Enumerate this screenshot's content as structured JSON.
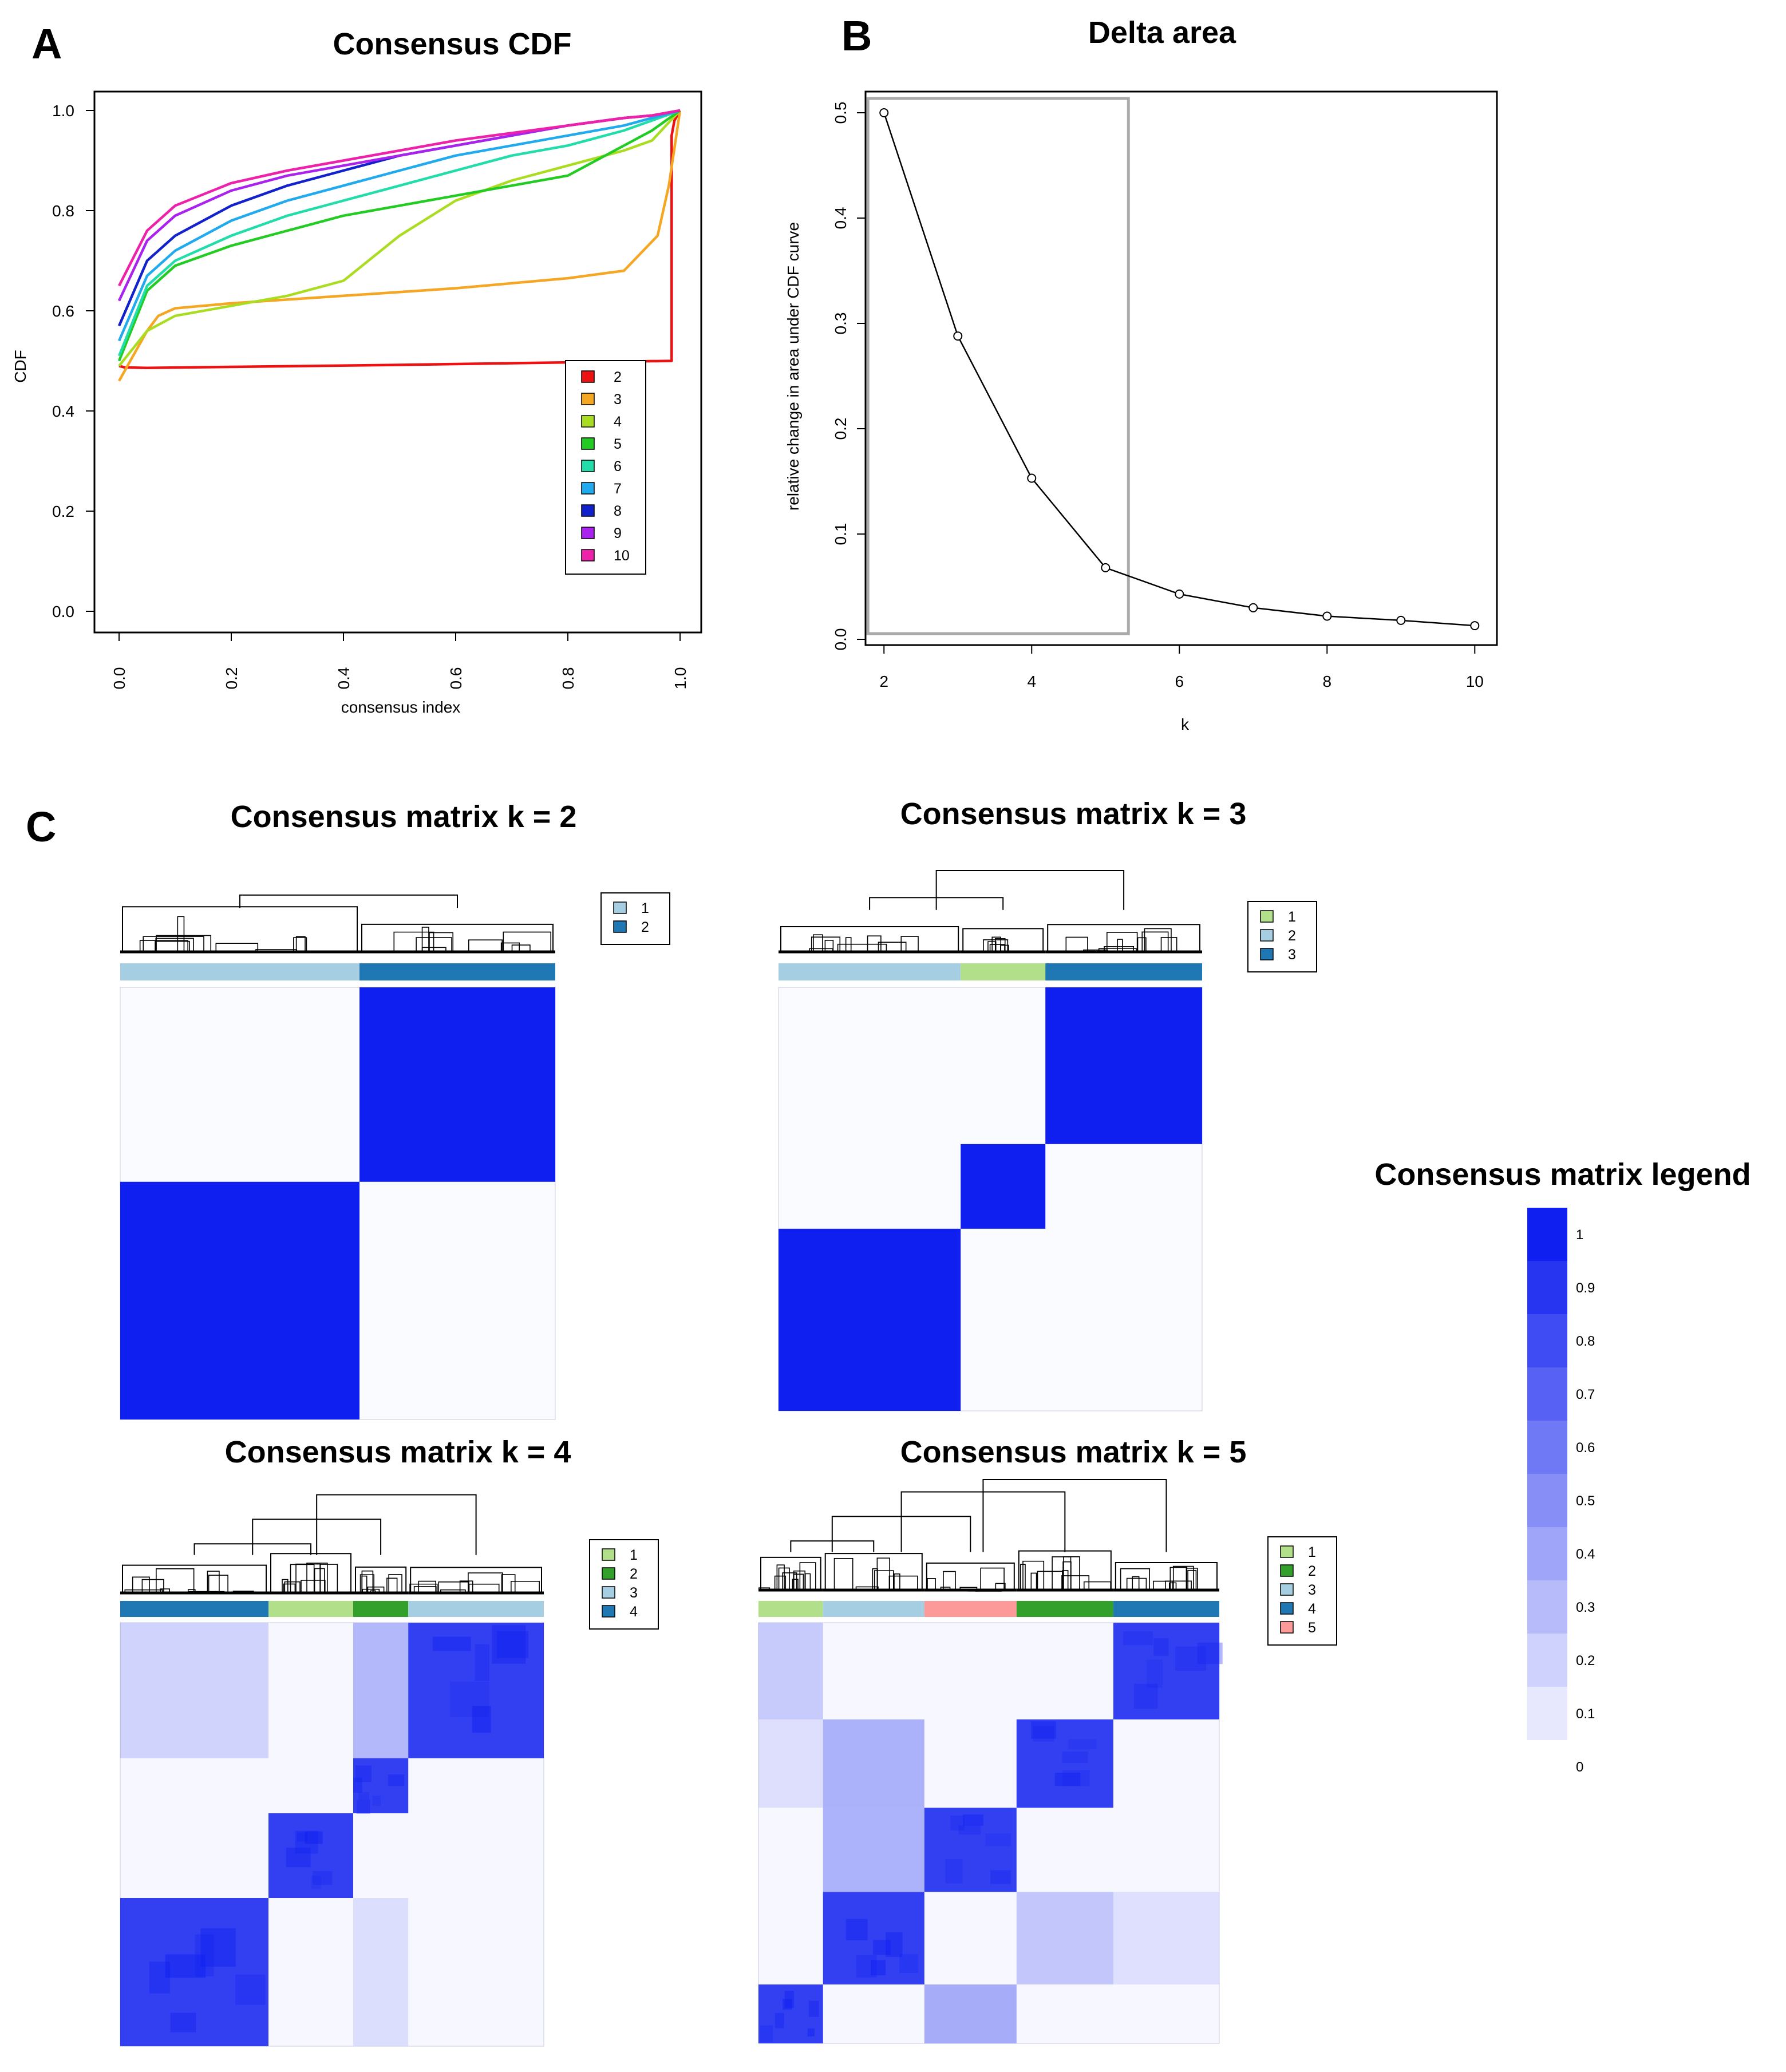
{
  "panels": {
    "a": "A",
    "b": "B",
    "c": "C"
  },
  "chart_data": [
    {
      "type": "line",
      "title": "Consensus CDF",
      "xlabel": "consensus index",
      "ylabel": "CDF",
      "xlim": [
        0,
        1
      ],
      "ylim": [
        0,
        1
      ],
      "x_ticks": [
        "0.0",
        "0.2",
        "0.4",
        "0.6",
        "0.8",
        "1.0"
      ],
      "y_ticks": [
        "0.0",
        "0.2",
        "0.4",
        "0.6",
        "0.8",
        "1.0"
      ],
      "legend_position": "bottom-right",
      "series": [
        {
          "name": "2",
          "color": "#ee1111",
          "x": [
            0.0,
            0.01,
            0.05,
            0.5,
            0.985,
            0.985,
            0.99,
            1.0
          ],
          "y": [
            0.49,
            0.487,
            0.486,
            0.492,
            0.5,
            0.95,
            0.98,
            1.0
          ]
        },
        {
          "name": "3",
          "color": "#f5a623",
          "x": [
            0.0,
            0.02,
            0.05,
            0.07,
            0.1,
            0.2,
            0.4,
            0.6,
            0.8,
            0.9,
            0.96,
            0.98,
            1.0
          ],
          "y": [
            0.46,
            0.5,
            0.56,
            0.59,
            0.605,
            0.615,
            0.63,
            0.645,
            0.665,
            0.68,
            0.75,
            0.85,
            1.0
          ]
        },
        {
          "name": "4",
          "color": "#aadd22",
          "x": [
            0.0,
            0.05,
            0.1,
            0.2,
            0.3,
            0.4,
            0.5,
            0.6,
            0.7,
            0.8,
            0.9,
            0.95,
            1.0
          ],
          "y": [
            0.49,
            0.56,
            0.59,
            0.61,
            0.63,
            0.66,
            0.75,
            0.82,
            0.86,
            0.89,
            0.92,
            0.94,
            1.0
          ]
        },
        {
          "name": "5",
          "color": "#22cc22",
          "x": [
            0.0,
            0.05,
            0.1,
            0.2,
            0.3,
            0.4,
            0.5,
            0.6,
            0.7,
            0.8,
            0.9,
            0.95,
            1.0
          ],
          "y": [
            0.5,
            0.64,
            0.69,
            0.73,
            0.76,
            0.79,
            0.81,
            0.83,
            0.85,
            0.87,
            0.93,
            0.96,
            1.0
          ]
        },
        {
          "name": "6",
          "color": "#22ddaa",
          "x": [
            0.0,
            0.05,
            0.1,
            0.2,
            0.3,
            0.4,
            0.5,
            0.6,
            0.7,
            0.8,
            0.9,
            0.95,
            1.0
          ],
          "y": [
            0.51,
            0.65,
            0.7,
            0.75,
            0.79,
            0.82,
            0.85,
            0.88,
            0.91,
            0.93,
            0.96,
            0.98,
            1.0
          ]
        },
        {
          "name": "7",
          "color": "#22aaee",
          "x": [
            0.0,
            0.05,
            0.1,
            0.2,
            0.3,
            0.4,
            0.5,
            0.6,
            0.7,
            0.8,
            0.9,
            0.95,
            1.0
          ],
          "y": [
            0.54,
            0.67,
            0.72,
            0.78,
            0.82,
            0.85,
            0.88,
            0.91,
            0.93,
            0.95,
            0.97,
            0.985,
            1.0
          ]
        },
        {
          "name": "8",
          "color": "#1122cc",
          "x": [
            0.0,
            0.05,
            0.1,
            0.2,
            0.3,
            0.4,
            0.5,
            0.6,
            0.7,
            0.8,
            0.9,
            0.95,
            1.0
          ],
          "y": [
            0.57,
            0.7,
            0.75,
            0.81,
            0.85,
            0.88,
            0.91,
            0.93,
            0.95,
            0.97,
            0.985,
            0.99,
            1.0
          ]
        },
        {
          "name": "9",
          "color": "#aa22ee",
          "x": [
            0.0,
            0.05,
            0.1,
            0.2,
            0.3,
            0.4,
            0.5,
            0.6,
            0.7,
            0.8,
            0.9,
            0.95,
            1.0
          ],
          "y": [
            0.62,
            0.74,
            0.79,
            0.84,
            0.87,
            0.89,
            0.91,
            0.93,
            0.95,
            0.97,
            0.985,
            0.99,
            1.0
          ]
        },
        {
          "name": "10",
          "color": "#ee22aa",
          "x": [
            0.0,
            0.05,
            0.1,
            0.2,
            0.3,
            0.4,
            0.5,
            0.6,
            0.7,
            0.8,
            0.9,
            0.95,
            1.0
          ],
          "y": [
            0.65,
            0.76,
            0.81,
            0.855,
            0.88,
            0.9,
            0.92,
            0.94,
            0.955,
            0.97,
            0.985,
            0.99,
            1.0
          ]
        }
      ]
    },
    {
      "type": "line",
      "title": "Delta area",
      "xlabel": "k",
      "ylabel": "relative change in area under CDF curve",
      "xlim": [
        1.75,
        10.3
      ],
      "ylim": [
        0,
        0.5
      ],
      "x_ticks": [
        "2",
        "4",
        "6",
        "8",
        "10"
      ],
      "y_ticks": [
        "0.0",
        "0.1",
        "0.2",
        "0.3",
        "0.4",
        "0.5"
      ],
      "highlight_box_k": [
        2,
        5
      ],
      "series": [
        {
          "x": [
            2,
            3,
            4,
            5,
            6,
            7,
            8,
            9,
            10
          ],
          "y": [
            0.5,
            0.288,
            0.153,
            0.068,
            0.043,
            0.03,
            0.022,
            0.018,
            0.013
          ]
        }
      ]
    },
    {
      "type": "heatmap",
      "title": "Consensus matrix k = 2",
      "legend": [
        "1",
        "2"
      ],
      "legend_colors": [
        "#a6cee3",
        "#1f78b4"
      ],
      "cluster_order": [
        1,
        2
      ],
      "cluster_sizes": [
        0.55,
        0.45
      ]
    },
    {
      "type": "heatmap",
      "title": "Consensus matrix k = 3",
      "legend": [
        "1",
        "2",
        "3"
      ],
      "legend_colors": [
        "#b2df8a",
        "#a6cee3",
        "#1f78b4"
      ],
      "cluster_order": [
        2,
        1,
        3
      ],
      "cluster_sizes": [
        0.43,
        0.2,
        0.37
      ]
    },
    {
      "type": "heatmap",
      "title": "Consensus matrix k = 4",
      "legend": [
        "1",
        "2",
        "3",
        "4"
      ],
      "legend_colors": [
        "#b2df8a",
        "#33a02c",
        "#a6cee3",
        "#1f78b4"
      ],
      "cluster_order": [
        4,
        1,
        2,
        3
      ],
      "cluster_sizes": [
        0.35,
        0.2,
        0.13,
        0.32
      ]
    },
    {
      "type": "heatmap",
      "title": "Consensus matrix k = 5",
      "legend": [
        "1",
        "2",
        "3",
        "4",
        "5"
      ],
      "legend_colors": [
        "#b2df8a",
        "#33a02c",
        "#a6cee3",
        "#1f78b4",
        "#fb9a99"
      ],
      "cluster_order": [
        1,
        3,
        5,
        2,
        4
      ],
      "cluster_sizes": [
        0.14,
        0.22,
        0.2,
        0.21,
        0.23
      ]
    },
    {
      "type": "heatmap",
      "title": "Consensus matrix legend",
      "levels": [
        "1",
        "0.9",
        "0.8",
        "0.7",
        "0.6",
        "0.5",
        "0.4",
        "0.3",
        "0.2",
        "0.1",
        "0"
      ]
    }
  ]
}
